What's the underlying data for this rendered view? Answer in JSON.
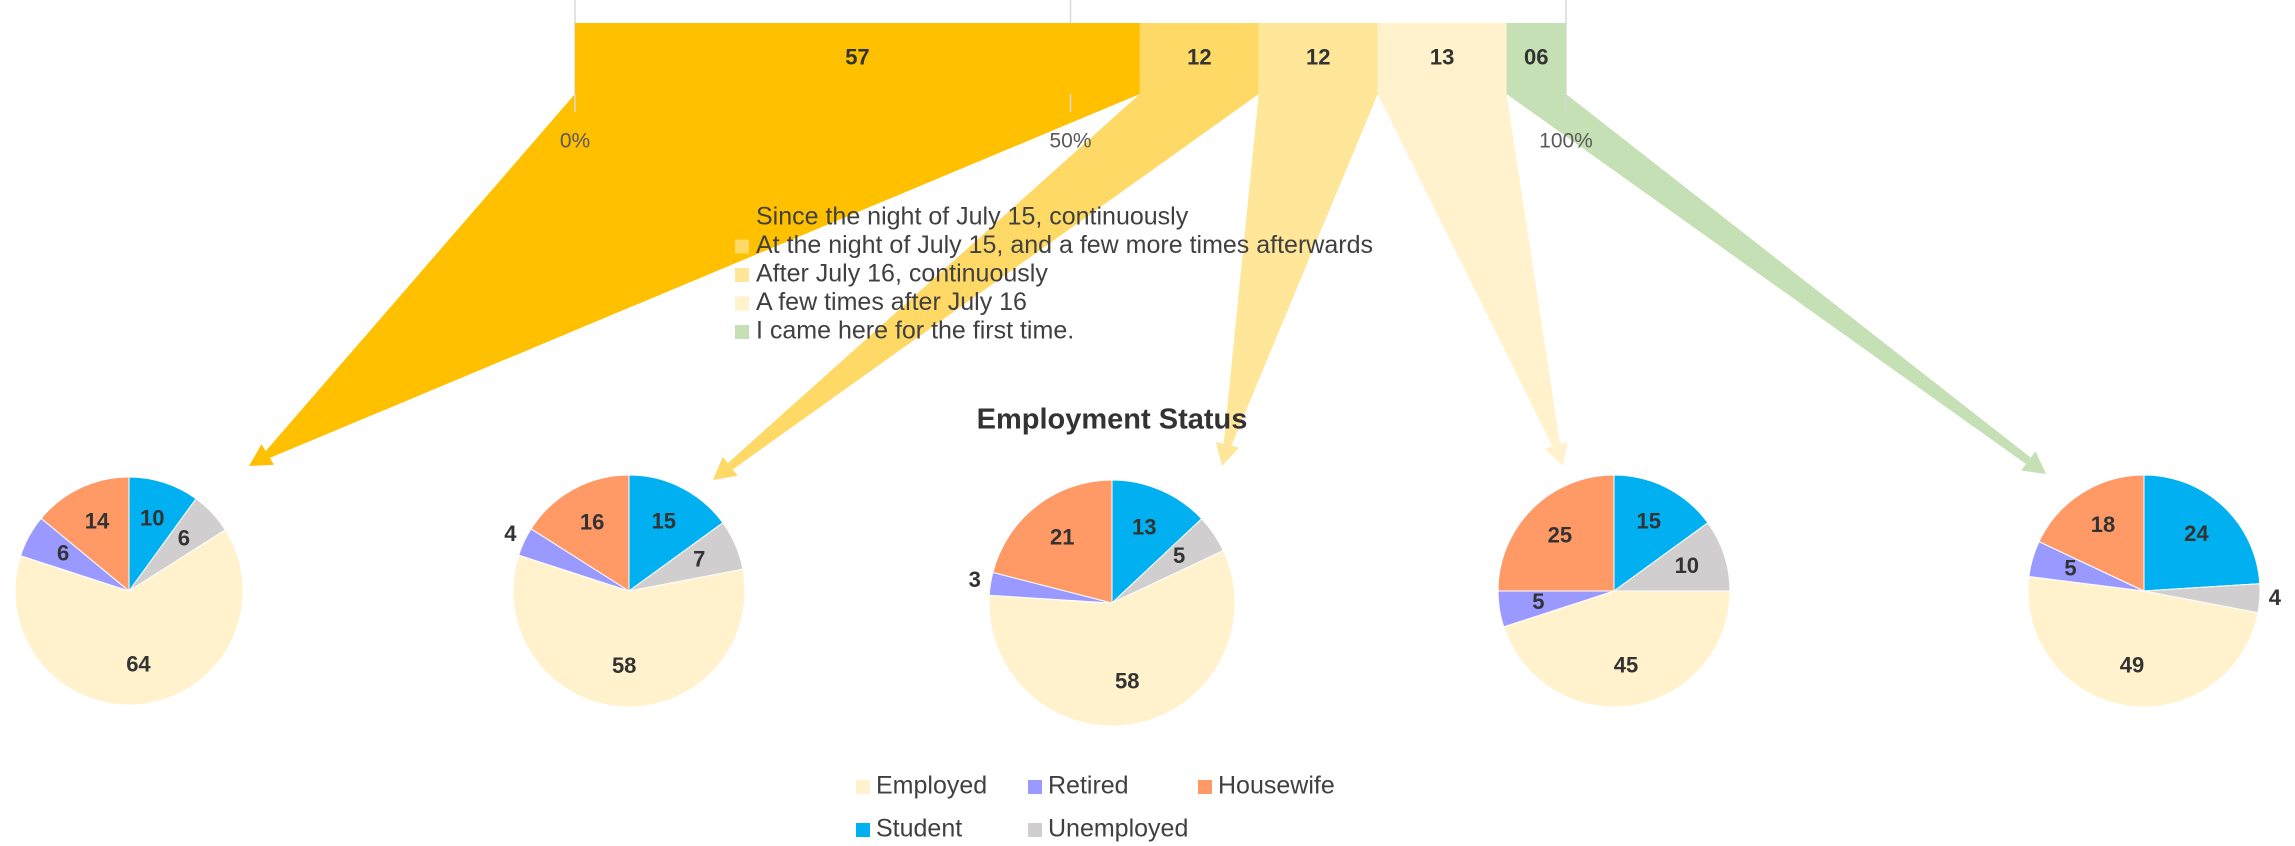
{
  "chart_data": [
    {
      "type": "stacked-bar",
      "xlim": [
        0,
        100
      ],
      "xticks": [
        {
          "value": 0,
          "label": "0%"
        },
        {
          "value": 50,
          "label": "50%"
        },
        {
          "value": 100,
          "label": "100%"
        }
      ],
      "series": [
        {
          "name": "Since the night of July 15, continuously",
          "color": "#ffc000",
          "values": [
            57
          ]
        },
        {
          "name": "At the night of July 15, and a few more times afterwards",
          "color": "#ffd966",
          "values": [
            12
          ]
        },
        {
          "name": "After July 16, continuously",
          "color": "#ffe699",
          "values": [
            12
          ]
        },
        {
          "name": "A few times after July 16",
          "color": "#fff2cc",
          "values": [
            13
          ]
        },
        {
          "name": "I came here for the first time.",
          "color": "#c5e0b4",
          "values": [
            6
          ],
          "value_labels": [
            "06"
          ]
        }
      ]
    },
    {
      "type": "pie",
      "title": "Employment Status",
      "categories": [
        "Employed",
        "Retired",
        "Housewife",
        "Student",
        "Unemployed"
      ],
      "colors": [
        "#fff2cc",
        "#9999ff",
        "#ff9966",
        "#00b0f0",
        "#d0cece"
      ],
      "series": [
        {
          "values": [
            64,
            6,
            14,
            10,
            6
          ]
        },
        {
          "values": [
            58,
            4,
            16,
            15,
            7
          ]
        },
        {
          "values": [
            58,
            3,
            21,
            13,
            5
          ]
        },
        {
          "values": [
            45,
            5,
            25,
            15,
            10
          ]
        },
        {
          "values": [
            49,
            5,
            18,
            24,
            4
          ]
        }
      ]
    }
  ]
}
